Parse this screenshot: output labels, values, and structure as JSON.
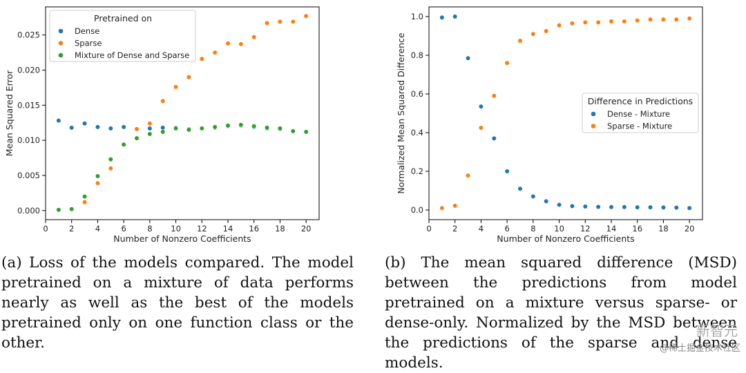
{
  "chart_data": [
    {
      "type": "scatter",
      "xlabel": "Number of Nonzero Coefficients",
      "ylabel": "Mean Squared Error",
      "xlim": [
        0,
        21
      ],
      "ylim": [
        -0.0013,
        0.029
      ],
      "xticks": [
        0,
        2,
        4,
        6,
        8,
        10,
        12,
        14,
        16,
        18,
        20
      ],
      "yticks": [
        0.0,
        0.005,
        0.01,
        0.015,
        0.02,
        0.025
      ],
      "ytick_labels": [
        "0.000",
        "0.005",
        "0.010",
        "0.015",
        "0.020",
        "0.025"
      ],
      "grid": false,
      "legend": {
        "title": "Pretrained on",
        "placement": "top-left"
      },
      "series": [
        {
          "name": "Dense",
          "color": "#1f77b4",
          "x": [
            1,
            2,
            3,
            4,
            5,
            6,
            7,
            8,
            9,
            10,
            11,
            12,
            13,
            14,
            15,
            16,
            17,
            18,
            19,
            20
          ],
          "y": [
            0.0128,
            0.0118,
            0.0124,
            0.0119,
            0.0117,
            0.0119,
            0.0116,
            0.0117,
            0.0118,
            0.0118,
            0.0116,
            0.0117,
            0.0118,
            0.012,
            0.0121,
            0.0119,
            0.0117,
            0.0116,
            0.0113,
            0.0112
          ]
        },
        {
          "name": "Sparse",
          "color": "#ff7f0e",
          "x": [
            1,
            2,
            3,
            4,
            5,
            6,
            7,
            8,
            9,
            10,
            11,
            12,
            13,
            14,
            15,
            16,
            17,
            18,
            19,
            20
          ],
          "y": [
            0.0001,
            0.0002,
            0.0012,
            0.0039,
            0.006,
            0.0094,
            0.0116,
            0.0124,
            0.0156,
            0.0176,
            0.019,
            0.0216,
            0.0225,
            0.0238,
            0.0237,
            0.0247,
            0.0267,
            0.0269,
            0.0269,
            0.0277
          ]
        },
        {
          "name": "Mixture of Dense and Sparse",
          "color": "#2ca02c",
          "x": [
            1,
            2,
            3,
            4,
            5,
            6,
            7,
            8,
            9,
            10,
            11,
            12,
            13,
            14,
            15,
            16,
            17,
            18,
            19,
            20
          ],
          "y": [
            0.0001,
            0.0002,
            0.002,
            0.0049,
            0.0073,
            0.0094,
            0.0103,
            0.0109,
            0.0112,
            0.0117,
            0.0115,
            0.0117,
            0.0119,
            0.0121,
            0.0122,
            0.012,
            0.0118,
            0.0117,
            0.0113,
            0.0112
          ]
        }
      ]
    },
    {
      "type": "scatter",
      "xlabel": "Number of Nonzero Coefficients",
      "ylabel": "Normalized Mean Squared Difference",
      "xlim": [
        0,
        21
      ],
      "ylim": [
        -0.05,
        1.05
      ],
      "xticks": [
        0,
        2,
        4,
        6,
        8,
        10,
        12,
        14,
        16,
        18,
        20
      ],
      "yticks": [
        0.0,
        0.2,
        0.4,
        0.6,
        0.8,
        1.0
      ],
      "ytick_labels": [
        "0.0",
        "0.2",
        "0.4",
        "0.6",
        "0.8",
        "1.0"
      ],
      "grid": false,
      "legend": {
        "title": "Difference in Predictions",
        "placement": "center-right"
      },
      "series": [
        {
          "name": "Dense - Mixture",
          "color": "#1f77b4",
          "x": [
            1,
            2,
            3,
            4,
            5,
            6,
            7,
            8,
            9,
            10,
            11,
            12,
            13,
            14,
            15,
            16,
            17,
            18,
            19,
            20
          ],
          "y": [
            0.995,
            1.0,
            0.785,
            0.535,
            0.37,
            0.2,
            0.11,
            0.07,
            0.045,
            0.027,
            0.02,
            0.018,
            0.016,
            0.015,
            0.015,
            0.014,
            0.014,
            0.013,
            0.012,
            0.01
          ]
        },
        {
          "name": "Sparse - Mixture",
          "color": "#ff7f0e",
          "x": [
            1,
            2,
            3,
            4,
            5,
            6,
            7,
            8,
            9,
            10,
            11,
            12,
            13,
            14,
            15,
            16,
            17,
            18,
            19,
            20
          ],
          "y": [
            0.01,
            0.022,
            0.178,
            0.425,
            0.59,
            0.76,
            0.875,
            0.91,
            0.925,
            0.955,
            0.965,
            0.97,
            0.97,
            0.975,
            0.975,
            0.98,
            0.985,
            0.985,
            0.985,
            0.99
          ]
        }
      ]
    }
  ],
  "captions": {
    "a": "(a) Loss of the models compared. The model pretrained on a mixture of data performs nearly as well as the best of the models pretrained only on one function class or the other.",
    "b": "(b) The mean squared difference (MSD) between the predictions from model pretrained on a mixture versus sparse- or dense-only. Normalized by the MSD between the predictions of the sparse and dense models."
  },
  "watermark": "@稀土掘金技术社区",
  "watermark_logo": "新智元"
}
